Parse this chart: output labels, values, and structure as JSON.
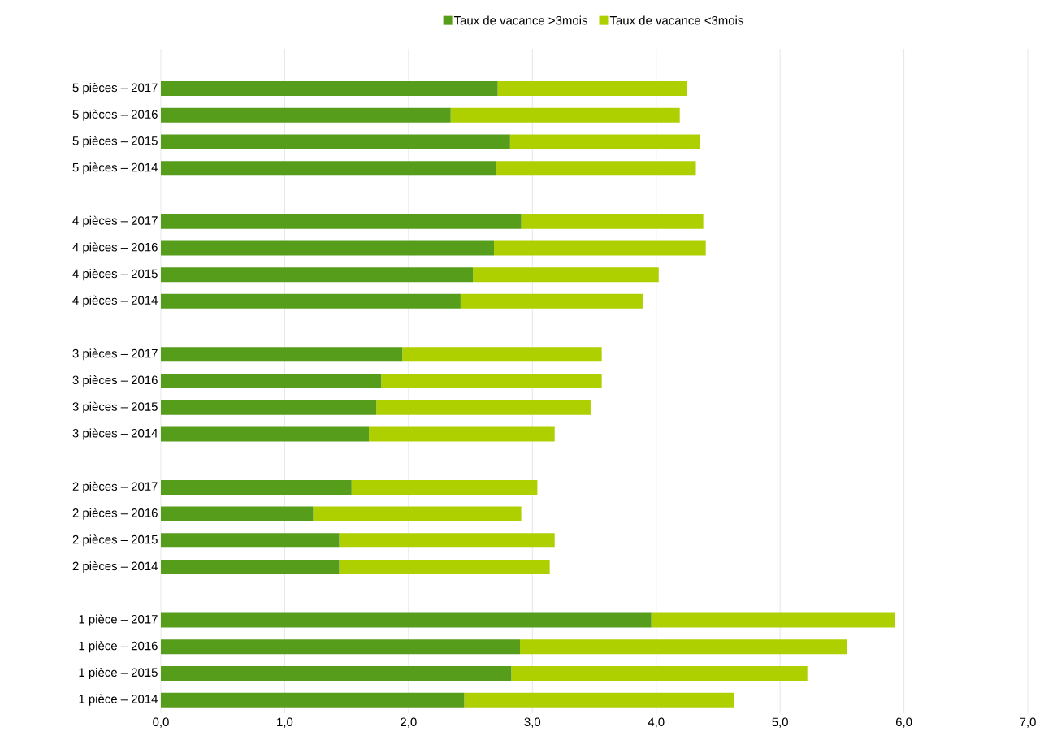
{
  "chart_data": {
    "type": "bar",
    "orientation": "horizontal",
    "stacked": true,
    "categories": [
      null,
      "5 pièces – 2017",
      "5 pièces – 2016",
      "5 pièces – 2015",
      "5 pièces – 2014",
      null,
      "4 pièces – 2017",
      "4 pièces – 2016",
      "4 pièces – 2015",
      "4 pièces – 2014",
      null,
      "3 pièces – 2017",
      "3 pièces – 2016",
      "3 pièces – 2015",
      "3 pièces – 2014",
      null,
      "2 pièces – 2017",
      "2 pièces – 2016",
      "2 pièces – 2015",
      "2 pièces – 2014",
      null,
      "1 pièce – 2017",
      "1 pièce – 2016",
      "1 pièce – 2015",
      "1 pièce – 2014"
    ],
    "series": [
      {
        "name": "Taux de vacance >3mois",
        "color": "#579d1c",
        "values": [
          null,
          2.72,
          2.34,
          2.82,
          2.71,
          null,
          2.91,
          2.69,
          2.52,
          2.42,
          null,
          1.95,
          1.78,
          1.74,
          1.68,
          null,
          1.54,
          1.23,
          1.44,
          1.44,
          null,
          3.96,
          2.9,
          2.83,
          2.45
        ]
      },
      {
        "name": "Taux de vacance <3mois",
        "color": "#aecf00",
        "values": [
          null,
          1.53,
          1.85,
          1.53,
          1.61,
          null,
          1.47,
          1.71,
          1.5,
          1.47,
          null,
          1.61,
          1.78,
          1.73,
          1.5,
          null,
          1.5,
          1.68,
          1.74,
          1.7,
          null,
          1.97,
          2.64,
          2.39,
          2.18
        ]
      }
    ],
    "xlim": [
      0,
      7
    ],
    "xticks": [
      {
        "value": 0,
        "label": "0,0"
      },
      {
        "value": 1,
        "label": "1,0"
      },
      {
        "value": 2,
        "label": "2,0"
      },
      {
        "value": 3,
        "label": "3,0"
      },
      {
        "value": 4,
        "label": "4,0"
      },
      {
        "value": 5,
        "label": "5,0"
      },
      {
        "value": 6,
        "label": "6,0"
      },
      {
        "value": 7,
        "label": "7,0"
      }
    ],
    "grid": "x",
    "legend": "top"
  }
}
